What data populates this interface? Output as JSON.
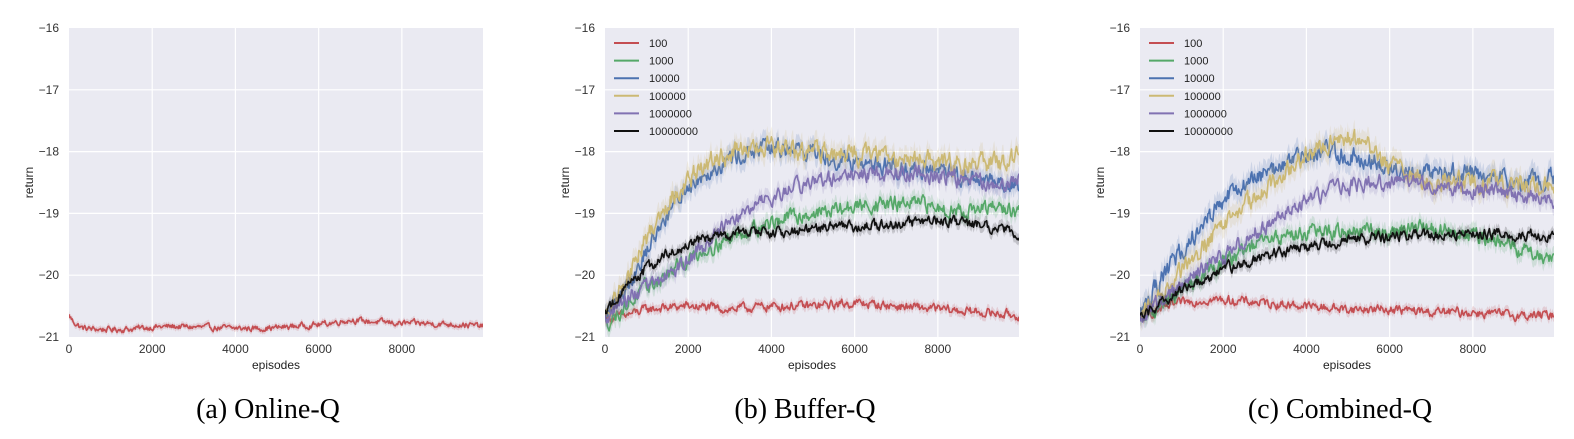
{
  "chart_data": [
    {
      "type": "line",
      "caption": "(a) Online-Q",
      "xlabel": "episodes",
      "ylabel": "return",
      "xlim": [
        0,
        9950
      ],
      "ylim": [
        -21,
        -16
      ],
      "x_ticks": [
        0,
        2000,
        4000,
        6000,
        8000
      ],
      "y_ticks": [
        -21,
        -20,
        -19,
        -18,
        -17,
        -16
      ],
      "grid": true,
      "legend": null,
      "series": [
        {
          "name": "",
          "color": "#c44e52",
          "noise": 0.04,
          "x": [
            0,
            100,
            300,
            500,
            1000,
            1500,
            2000,
            2500,
            3000,
            3500,
            4000,
            4500,
            5000,
            5500,
            6000,
            6500,
            6800,
            7000,
            7500,
            8000,
            8500,
            9000,
            9500,
            9950
          ],
          "y": [
            -20.65,
            -20.75,
            -20.85,
            -20.87,
            -20.88,
            -20.87,
            -20.84,
            -20.83,
            -20.84,
            -20.85,
            -20.86,
            -20.86,
            -20.85,
            -20.82,
            -20.8,
            -20.75,
            -20.72,
            -20.74,
            -20.76,
            -20.78,
            -20.78,
            -20.79,
            -20.8,
            -20.83
          ]
        }
      ]
    },
    {
      "type": "line",
      "caption": "(b) Buffer-Q",
      "xlabel": "episodes",
      "ylabel": "return",
      "xlim": [
        0,
        9950
      ],
      "ylim": [
        -21,
        -16
      ],
      "x_ticks": [
        0,
        2000,
        4000,
        6000,
        8000
      ],
      "y_ticks": [
        -21,
        -20,
        -19,
        -18,
        -17,
        -16
      ],
      "grid": true,
      "legend": "top-left",
      "series": [
        {
          "name": "100",
          "color": "#c44e52",
          "noise": 0.06,
          "x": [
            0,
            500,
            1000,
            2000,
            3000,
            4000,
            5000,
            6000,
            7000,
            8000,
            9000,
            9950
          ],
          "y": [
            -20.7,
            -20.65,
            -20.55,
            -20.5,
            -20.55,
            -20.5,
            -20.5,
            -20.45,
            -20.5,
            -20.55,
            -20.6,
            -20.65
          ]
        },
        {
          "name": "1000",
          "color": "#55a868",
          "noise": 0.1,
          "x": [
            0,
            500,
            1000,
            1500,
            2000,
            2500,
            3000,
            3500,
            4000,
            4500,
            5000,
            5500,
            6000,
            6500,
            7000,
            7500,
            8000,
            8500,
            9000,
            9500,
            9950
          ],
          "y": [
            -20.8,
            -20.5,
            -20.2,
            -20.0,
            -19.75,
            -19.55,
            -19.4,
            -19.25,
            -19.15,
            -19.05,
            -19.0,
            -18.95,
            -18.9,
            -18.85,
            -18.85,
            -18.85,
            -18.9,
            -18.95,
            -18.95,
            -18.9,
            -19.0
          ]
        },
        {
          "name": "10000",
          "color": "#4c72b0",
          "noise": 0.12,
          "x": [
            0,
            500,
            1000,
            1500,
            2000,
            2500,
            3000,
            3500,
            4000,
            4500,
            5000,
            5500,
            6000,
            6500,
            7000,
            7500,
            8000,
            8500,
            9000,
            9500,
            9950
          ],
          "y": [
            -20.7,
            -20.2,
            -19.6,
            -19.0,
            -18.55,
            -18.3,
            -18.1,
            -18.0,
            -17.95,
            -17.95,
            -18.0,
            -18.1,
            -18.15,
            -18.2,
            -18.25,
            -18.3,
            -18.35,
            -18.4,
            -18.45,
            -18.5,
            -18.55
          ]
        },
        {
          "name": "100000",
          "color": "#ccb974",
          "noise": 0.13,
          "x": [
            0,
            500,
            1000,
            1500,
            2000,
            2500,
            3000,
            3500,
            4000,
            4500,
            5000,
            5500,
            6000,
            6500,
            7000,
            7500,
            8000,
            8500,
            9000,
            9500,
            9950
          ],
          "y": [
            -20.7,
            -20.1,
            -19.4,
            -18.8,
            -18.45,
            -18.2,
            -18.05,
            -17.95,
            -17.95,
            -18.0,
            -18.0,
            -18.05,
            -18.05,
            -18.05,
            -18.1,
            -18.1,
            -18.15,
            -18.2,
            -18.2,
            -18.2,
            -18.1
          ]
        },
        {
          "name": "1000000",
          "color": "#8172b2",
          "noise": 0.1,
          "x": [
            0,
            500,
            1000,
            1500,
            2000,
            2500,
            3000,
            3500,
            4000,
            4500,
            5000,
            5500,
            6000,
            6500,
            7000,
            7500,
            8000,
            8500,
            9000,
            9500,
            9950
          ],
          "y": [
            -20.7,
            -20.4,
            -20.2,
            -20.0,
            -19.75,
            -19.45,
            -19.15,
            -18.95,
            -18.75,
            -18.6,
            -18.5,
            -18.45,
            -18.4,
            -18.35,
            -18.35,
            -18.35,
            -18.4,
            -18.45,
            -18.5,
            -18.55,
            -18.45
          ]
        },
        {
          "name": "10000000",
          "color": "#111111",
          "noise": 0.07,
          "x": [
            0,
            500,
            1000,
            1500,
            2000,
            2500,
            3000,
            3500,
            4000,
            4500,
            5000,
            5500,
            6000,
            6500,
            7000,
            7500,
            8000,
            8500,
            9000,
            9500,
            9950
          ],
          "y": [
            -20.6,
            -20.2,
            -19.9,
            -19.65,
            -19.5,
            -19.4,
            -19.35,
            -19.3,
            -19.3,
            -19.3,
            -19.25,
            -19.2,
            -19.2,
            -19.2,
            -19.15,
            -19.15,
            -19.1,
            -19.15,
            -19.2,
            -19.25,
            -19.35
          ]
        }
      ]
    },
    {
      "type": "line",
      "caption": "(c) Combined-Q",
      "xlabel": "episodes",
      "ylabel": "return",
      "xlim": [
        0,
        9950
      ],
      "ylim": [
        -21,
        -16
      ],
      "x_ticks": [
        0,
        2000,
        4000,
        6000,
        8000
      ],
      "y_ticks": [
        -21,
        -20,
        -19,
        -18,
        -17,
        -16
      ],
      "grid": true,
      "legend": "top-left",
      "series": [
        {
          "name": "100",
          "color": "#c44e52",
          "noise": 0.06,
          "x": [
            0,
            500,
            1000,
            1500,
            2000,
            3000,
            4000,
            5000,
            6000,
            7000,
            8000,
            9000,
            9950
          ],
          "y": [
            -20.7,
            -20.55,
            -20.45,
            -20.4,
            -20.4,
            -20.45,
            -20.5,
            -20.55,
            -20.55,
            -20.6,
            -20.6,
            -20.65,
            -20.65
          ]
        },
        {
          "name": "1000",
          "color": "#55a868",
          "noise": 0.1,
          "x": [
            0,
            500,
            1000,
            1500,
            2000,
            2500,
            3000,
            3500,
            4000,
            4500,
            5000,
            5500,
            6000,
            6500,
            7000,
            7500,
            8000,
            8500,
            9000,
            9500,
            9950
          ],
          "y": [
            -20.75,
            -20.5,
            -20.25,
            -20.0,
            -19.8,
            -19.6,
            -19.45,
            -19.35,
            -19.3,
            -19.3,
            -19.3,
            -19.3,
            -19.3,
            -19.25,
            -19.25,
            -19.3,
            -19.35,
            -19.45,
            -19.55,
            -19.65,
            -19.7
          ]
        },
        {
          "name": "10000",
          "color": "#4c72b0",
          "noise": 0.13,
          "x": [
            0,
            500,
            1000,
            1500,
            2000,
            2500,
            3000,
            3500,
            4000,
            4500,
            5000,
            5500,
            6000,
            6500,
            7000,
            7500,
            8000,
            8500,
            9000,
            9500,
            9950
          ],
          "y": [
            -20.6,
            -20.1,
            -19.6,
            -19.15,
            -18.8,
            -18.55,
            -18.35,
            -18.2,
            -18.05,
            -18.0,
            -18.05,
            -18.15,
            -18.25,
            -18.3,
            -18.35,
            -18.35,
            -18.35,
            -18.4,
            -18.45,
            -18.5,
            -18.45
          ]
        },
        {
          "name": "100000",
          "color": "#ccb974",
          "noise": 0.13,
          "x": [
            0,
            500,
            1000,
            1500,
            2000,
            2500,
            3000,
            3500,
            4000,
            4500,
            5000,
            5500,
            6000,
            6500,
            7000,
            7500,
            8000,
            8500,
            9000,
            9500,
            9950
          ],
          "y": [
            -20.7,
            -20.3,
            -19.95,
            -19.55,
            -19.2,
            -18.9,
            -18.6,
            -18.3,
            -18.05,
            -17.85,
            -17.75,
            -17.95,
            -18.2,
            -18.35,
            -18.45,
            -18.5,
            -18.5,
            -18.5,
            -18.55,
            -18.55,
            -18.6
          ]
        },
        {
          "name": "1000000",
          "color": "#8172b2",
          "noise": 0.1,
          "x": [
            0,
            500,
            1000,
            1500,
            2000,
            2500,
            3000,
            3500,
            4000,
            4500,
            5000,
            5500,
            6000,
            6500,
            7000,
            7500,
            8000,
            8500,
            9000,
            9500,
            9950
          ],
          "y": [
            -20.7,
            -20.4,
            -20.15,
            -19.9,
            -19.7,
            -19.45,
            -19.2,
            -19.0,
            -18.8,
            -18.65,
            -18.55,
            -18.5,
            -18.5,
            -18.5,
            -18.55,
            -18.6,
            -18.6,
            -18.65,
            -18.7,
            -18.75,
            -18.8
          ]
        },
        {
          "name": "10000000",
          "color": "#111111",
          "noise": 0.07,
          "x": [
            0,
            500,
            1000,
            1500,
            2000,
            2500,
            3000,
            3500,
            4000,
            4500,
            5000,
            5500,
            6000,
            6500,
            7000,
            7500,
            8000,
            8500,
            9000,
            9500,
            9950
          ],
          "y": [
            -20.7,
            -20.45,
            -20.25,
            -20.05,
            -19.9,
            -19.8,
            -19.7,
            -19.62,
            -19.55,
            -19.5,
            -19.45,
            -19.4,
            -19.38,
            -19.35,
            -19.35,
            -19.33,
            -19.33,
            -19.33,
            -19.35,
            -19.35,
            -19.4
          ]
        }
      ]
    }
  ]
}
